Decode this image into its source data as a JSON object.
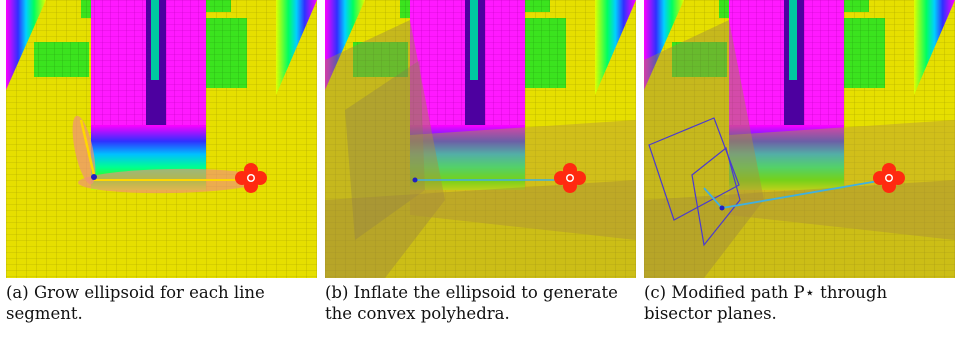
{
  "panels": [
    {
      "id": "a",
      "caption": "(a) Grow ellipsoid for each line segment."
    },
    {
      "id": "b",
      "caption": "(b) Inflate the ellipsoid to generate the convex polyhedra."
    },
    {
      "id": "c",
      "caption": "(c) Modified path P⋆ through bisector planes."
    }
  ],
  "colors": {
    "floor": "#e8e000",
    "obstacle_magenta": "#ff00ff",
    "obstacle_green": "#33e01a",
    "drone": "#ff2a10",
    "ellipsoid": "#f0907a",
    "polyhedra": "#b89a3a",
    "path_original": "#ffd700",
    "path_modified": "#40b0e0",
    "bisector": "#4a3ad0"
  }
}
